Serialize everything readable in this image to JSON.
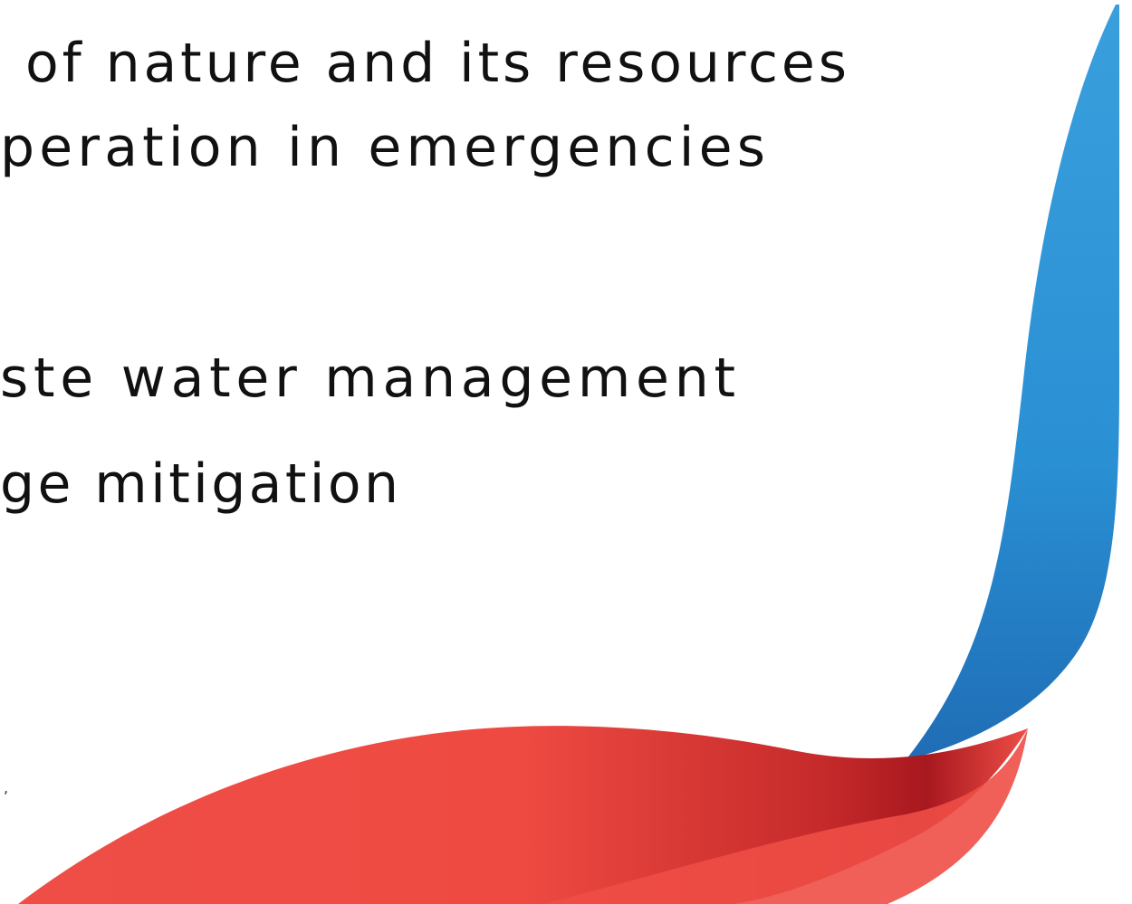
{
  "slide": {
    "lines": [
      "of nature and its resources",
      "peration in emergencies",
      "ste water management",
      "ge mitigation"
    ],
    "footnote": ","
  }
}
